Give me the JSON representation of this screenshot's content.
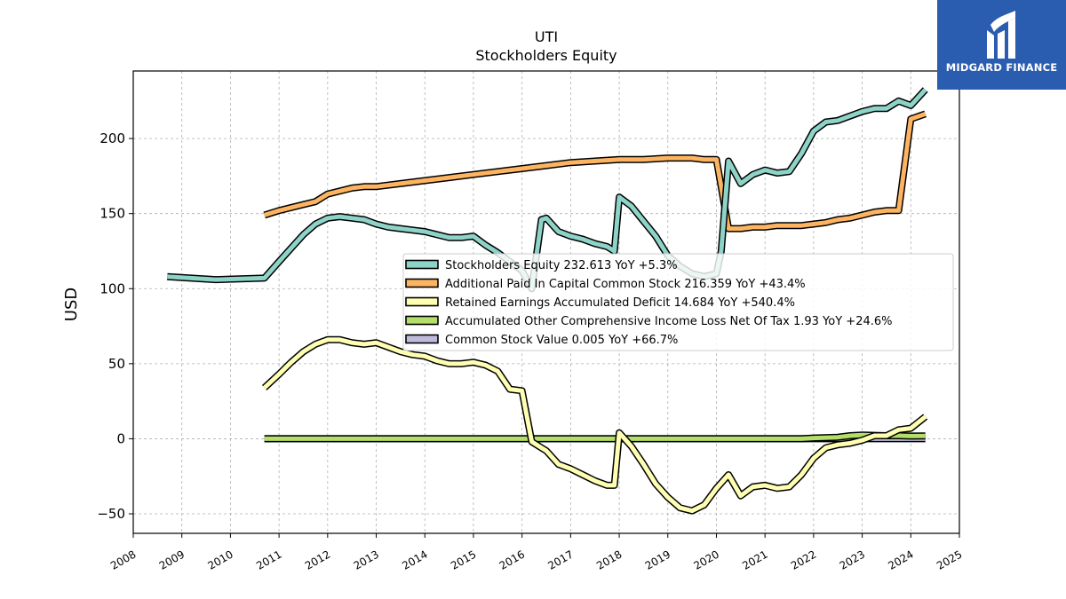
{
  "logo": {
    "text": "MIDGARD FINANCE",
    "icon": "midgard-logo-icon",
    "color": "#2a5cb0"
  },
  "chart_data": {
    "type": "line",
    "title": "UTI",
    "subtitle": "Stockholders  Equity",
    "xlabel": "",
    "ylabel": "USD",
    "xlim": [
      2008,
      2025
    ],
    "ylim": [
      -63,
      245
    ],
    "xticks": [
      "2008",
      "2009",
      "2010",
      "2011",
      "2012",
      "2013",
      "2014",
      "2015",
      "2016",
      "2017",
      "2018",
      "2019",
      "2020",
      "2021",
      "2022",
      "2023",
      "2024",
      "2025"
    ],
    "yticks": [
      -50,
      0,
      50,
      100,
      150,
      200
    ],
    "ytick_labels": [
      "−50",
      "0",
      "50",
      "100",
      "150",
      "200"
    ],
    "grid": true,
    "legend_position": "center-right",
    "series": [
      {
        "name": "Stockholders Equity  232.613 YoY +5.3%",
        "color": "#8dd3c7",
        "x": [
          2008.7,
          2009.7,
          2010.7,
          2011.0,
          2011.25,
          2011.5,
          2011.75,
          2012.0,
          2012.25,
          2012.5,
          2012.75,
          2013.0,
          2013.25,
          2013.5,
          2013.75,
          2014.0,
          2014.25,
          2014.5,
          2014.75,
          2015.0,
          2015.25,
          2015.5,
          2015.75,
          2016.0,
          2016.2,
          2016.4,
          2016.5,
          2016.75,
          2017.0,
          2017.25,
          2017.5,
          2017.75,
          2017.9,
          2018.0,
          2018.25,
          2018.5,
          2018.75,
          2019.0,
          2019.25,
          2019.5,
          2019.75,
          2020.0,
          2020.1,
          2020.25,
          2020.5,
          2020.75,
          2021.0,
          2021.25,
          2021.5,
          2021.75,
          2022.0,
          2022.25,
          2022.5,
          2022.75,
          2023.0,
          2023.25,
          2023.5,
          2023.75,
          2024.0,
          2024.3
        ],
        "y": [
          108,
          106,
          107,
          118,
          127,
          136,
          143,
          147,
          148,
          147,
          146,
          143,
          141,
          140,
          139,
          138,
          136,
          134,
          134,
          135,
          129,
          124,
          118,
          112,
          100,
          146,
          147,
          138,
          135,
          133,
          130,
          128,
          125,
          161,
          155,
          145,
          135,
          122,
          115,
          110,
          108,
          110,
          125,
          185,
          170,
          176,
          179,
          177,
          178,
          190,
          205,
          211,
          212,
          215,
          218,
          220,
          220,
          225,
          222,
          232.613
        ]
      },
      {
        "name": "Additional Paid In Capital Common Stock  216.359 YoY +43.4%",
        "color": "#fdb462",
        "x": [
          2010.7,
          2011.0,
          2011.5,
          2011.75,
          2012.0,
          2012.25,
          2012.5,
          2012.75,
          2013.0,
          2013.5,
          2014.0,
          2014.5,
          2015.0,
          2015.5,
          2016.0,
          2016.5,
          2017.0,
          2017.5,
          2018.0,
          2018.5,
          2019.0,
          2019.25,
          2019.5,
          2019.75,
          2020.0,
          2020.25,
          2020.5,
          2020.75,
          2021.0,
          2021.25,
          2021.5,
          2021.75,
          2022.0,
          2022.25,
          2022.5,
          2022.75,
          2023.0,
          2023.25,
          2023.5,
          2023.75,
          2024.0,
          2024.3
        ],
        "y": [
          149,
          152,
          156,
          158,
          163,
          165,
          167,
          168,
          168,
          170,
          172,
          174,
          176,
          178,
          180,
          182,
          184,
          185,
          186,
          186,
          187,
          187,
          187,
          186,
          186,
          140,
          140,
          141,
          141,
          142,
          142,
          142,
          143,
          144,
          146,
          147,
          149,
          151,
          152,
          152,
          213,
          216.359
        ]
      },
      {
        "name": "Retained Earnings Accumulated Deficit  14.684 YoY +540.4%",
        "color": "#ffffb3",
        "x": [
          2010.7,
          2011.0,
          2011.25,
          2011.5,
          2011.75,
          2012.0,
          2012.25,
          2012.5,
          2012.75,
          2013.0,
          2013.25,
          2013.5,
          2013.75,
          2014.0,
          2014.25,
          2014.5,
          2014.75,
          2015.0,
          2015.25,
          2015.5,
          2015.75,
          2016.0,
          2016.2,
          2016.4,
          2016.5,
          2016.75,
          2017.0,
          2017.25,
          2017.5,
          2017.75,
          2017.9,
          2018.0,
          2018.25,
          2018.5,
          2018.75,
          2019.0,
          2019.25,
          2019.5,
          2019.75,
          2020.0,
          2020.25,
          2020.5,
          2020.75,
          2021.0,
          2021.25,
          2021.5,
          2021.75,
          2022.0,
          2022.25,
          2022.5,
          2022.75,
          2023.0,
          2023.25,
          2023.5,
          2023.75,
          2024.0,
          2024.3
        ],
        "y": [
          34,
          43,
          51,
          58,
          63,
          66,
          66,
          64,
          63,
          64,
          61,
          58,
          56,
          55,
          52,
          50,
          50,
          51,
          49,
          45,
          33,
          32,
          -2,
          -6,
          -8,
          -17,
          -20,
          -24,
          -28,
          -31,
          -31,
          4,
          -5,
          -17,
          -30,
          -39,
          -46,
          -48,
          -44,
          -33,
          -24,
          -38,
          -32,
          -31,
          -33,
          -32,
          -24,
          -13,
          -6,
          -4,
          -3,
          -1,
          2,
          2,
          6,
          7,
          14.684
        ]
      },
      {
        "name": "Accumulated Other Comprehensive Income Loss Net Of Tax  1.93 YoY +24.6%",
        "color": "#b3de69",
        "x": [
          2010.7,
          2012.0,
          2014.0,
          2016.0,
          2018.0,
          2020.0,
          2021.0,
          2021.75,
          2022.0,
          2022.5,
          2022.75,
          2023.0,
          2023.5,
          2023.75,
          2024.0,
          2024.3
        ],
        "y": [
          0,
          0,
          0,
          0,
          0,
          0,
          0,
          0,
          0.5,
          1,
          2,
          2.5,
          2,
          2,
          1.8,
          1.93
        ]
      },
      {
        "name": "Common Stock Value  0.005 YoY +66.7%",
        "color": "#bebada",
        "x": [
          2010.7,
          2012.0,
          2014.0,
          2016.0,
          2018.0,
          2020.0,
          2022.0,
          2024.0,
          2024.3
        ],
        "y": [
          0,
          0,
          0,
          0,
          0,
          0,
          0,
          0,
          0.005
        ]
      }
    ]
  }
}
